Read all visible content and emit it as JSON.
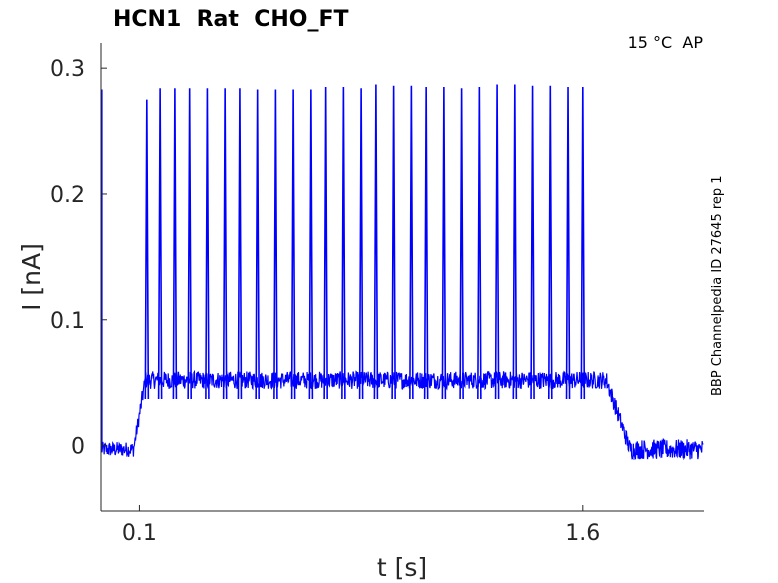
{
  "chart_data": {
    "type": "line",
    "title": "HCN1  Rat  CHO_FT",
    "condition_label": "15 °C  AP",
    "side_label": "BBP Channelpedia ID 27645 rep 1",
    "xlabel": "t [s]",
    "ylabel": "I [nA]",
    "xlim": [
      -0.03,
      2.01
    ],
    "ylim": [
      -0.052,
      0.32
    ],
    "x_ticks": [
      0.1,
      1.6
    ],
    "x_tick_labels": [
      "0.1",
      "1.6"
    ],
    "y_ticks": [
      0,
      0.1,
      0.2,
      0.3
    ],
    "y_tick_labels": [
      "0",
      "0.1",
      "0.2",
      "0.3"
    ],
    "grid": false,
    "legend": "none",
    "line_color": "#0000ff",
    "series": [
      {
        "baseline_pre": -0.003,
        "plateau": 0.052,
        "step_on_s": 0.1,
        "step_off_s": 1.7,
        "spike_times_s": [
          0.125,
          0.17,
          0.22,
          0.27,
          0.33,
          0.39,
          0.44,
          0.5,
          0.56,
          0.62,
          0.68,
          0.73,
          0.79,
          0.85,
          0.9,
          0.96,
          1.02,
          1.07,
          1.13,
          1.19,
          1.25,
          1.31,
          1.37,
          1.43,
          1.49,
          1.55,
          1.6
        ],
        "spike_peaks_na": [
          0.275,
          0.284,
          0.284,
          0.284,
          0.284,
          0.284,
          0.284,
          0.283,
          0.283,
          0.283,
          0.283,
          0.285,
          0.285,
          0.284,
          0.287,
          0.286,
          0.286,
          0.285,
          0.285,
          0.284,
          0.285,
          0.287,
          0.287,
          0.286,
          0.286,
          0.285,
          0.285
        ],
        "initial_transient": {
          "x": -0.028,
          "peak": 0.283
        }
      }
    ]
  }
}
